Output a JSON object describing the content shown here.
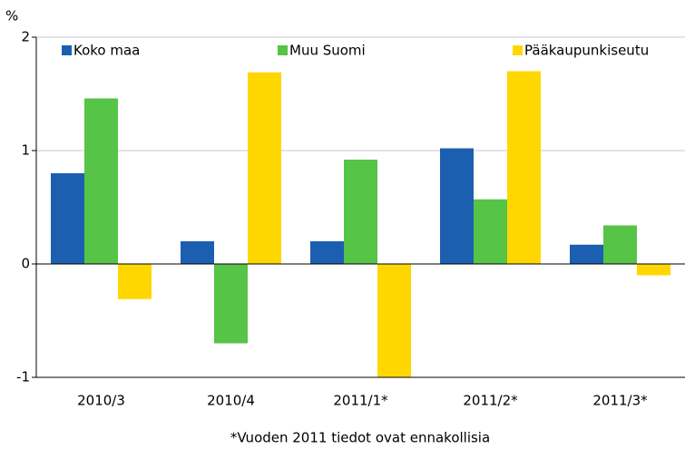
{
  "chart_data": {
    "type": "bar",
    "y_label": "%",
    "footnote": "*Vuoden 2011 tiedot ovat ennakollisia",
    "categories": [
      "2010/3",
      "2010/4",
      "2011/1*",
      "2011/2*",
      "2011/3*"
    ],
    "series": [
      {
        "name": "Koko maa",
        "color": "#1c5fb0",
        "values": [
          0.8,
          0.2,
          0.2,
          1.02,
          0.17
        ]
      },
      {
        "name": "Muu Suomi",
        "color": "#55c447",
        "values": [
          1.46,
          -0.7,
          0.92,
          0.57,
          0.34
        ]
      },
      {
        "name": "Pääkaupunkiseutu",
        "color": "#ffd700",
        "values": [
          -0.31,
          1.69,
          -1.0,
          1.7,
          -0.1
        ]
      }
    ],
    "ylim": [
      -1,
      2
    ],
    "yticks": [
      -1,
      0,
      1,
      2
    ],
    "grid": true,
    "legend": "top"
  }
}
